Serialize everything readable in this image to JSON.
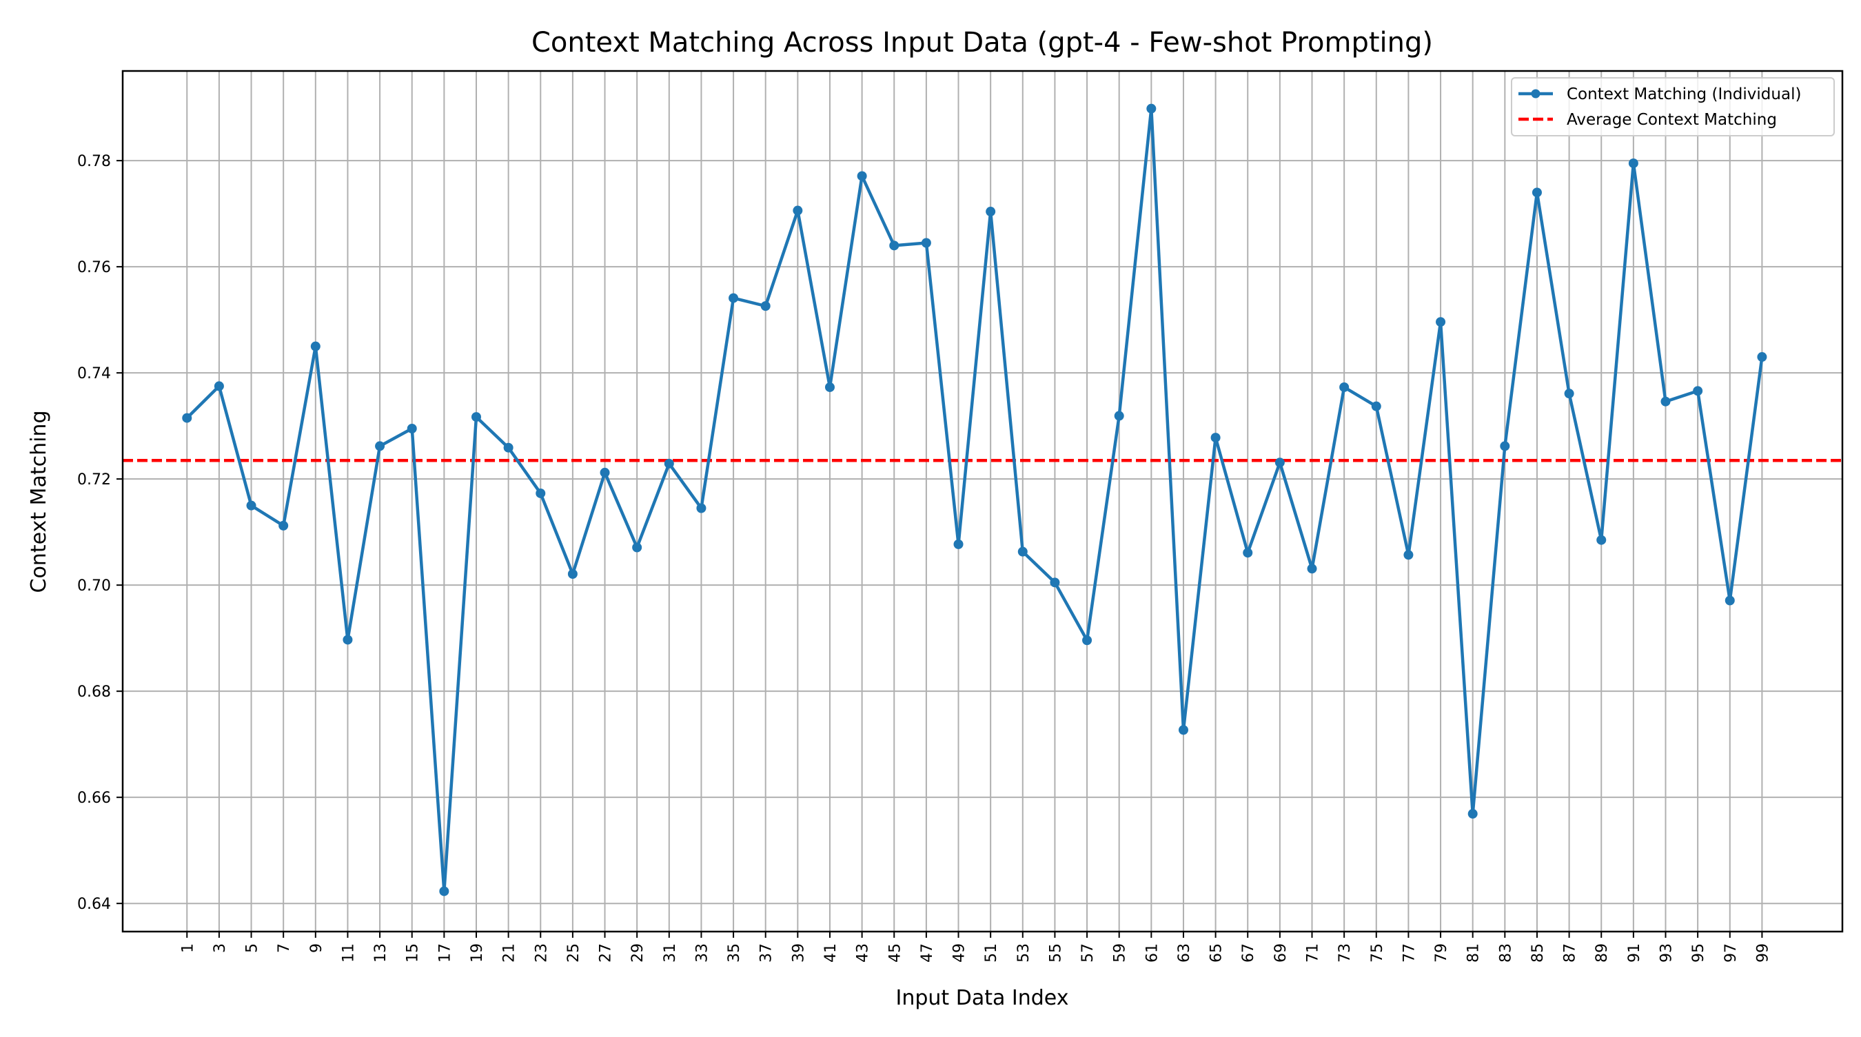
{
  "chart_data": {
    "type": "line",
    "title": "Context Matching Across Input Data (gpt-4 - Few-shot Prompting)",
    "xlabel": "Input Data Index",
    "ylabel": "Context Matching",
    "x_ticks": [
      "1",
      "3",
      "5",
      "7",
      "9",
      "11",
      "13",
      "15",
      "17",
      "19",
      "21",
      "23",
      "25",
      "27",
      "29",
      "31",
      "33",
      "35",
      "37",
      "39",
      "41",
      "43",
      "45",
      "47",
      "49",
      "51",
      "53",
      "55",
      "57",
      "59",
      "61",
      "63",
      "65",
      "67",
      "69",
      "71",
      "73",
      "75",
      "77",
      "79",
      "81",
      "83",
      "85",
      "87",
      "89",
      "91",
      "93",
      "95",
      "97",
      "99"
    ],
    "y_ticks": [
      "0.64",
      "0.66",
      "0.68",
      "0.70",
      "0.72",
      "0.74",
      "0.76",
      "0.78"
    ],
    "xlim": [
      -3,
      104
    ],
    "ylim": [
      0.6347,
      0.7969
    ],
    "grid": true,
    "legend_position": "top-right",
    "series": [
      {
        "name": "Context Matching (Individual)",
        "color": "#1f77b4",
        "style": "solid-with-markers",
        "x": [
          1,
          3,
          5,
          7,
          9,
          11,
          13,
          15,
          17,
          19,
          21,
          23,
          25,
          27,
          29,
          31,
          33,
          35,
          37,
          39,
          41,
          43,
          45,
          47,
          49,
          51,
          53,
          55,
          57,
          59,
          61,
          63,
          65,
          67,
          69,
          71,
          73,
          75,
          77,
          79,
          81,
          83,
          85,
          87,
          89,
          91,
          93,
          95,
          97,
          99
        ],
        "values": [
          0.7315,
          0.7375,
          0.715,
          0.7112,
          0.745,
          0.6897,
          0.7262,
          0.7295,
          0.6423,
          0.7317,
          0.7259,
          0.7173,
          0.7021,
          0.7212,
          0.7071,
          0.7229,
          0.7145,
          0.7541,
          0.7526,
          0.7706,
          0.7373,
          0.7771,
          0.764,
          0.7645,
          0.7077,
          0.7704,
          0.7063,
          0.7005,
          0.6896,
          0.7319,
          0.7898,
          0.6727,
          0.7278,
          0.7061,
          0.7231,
          0.7031,
          0.7373,
          0.7337,
          0.7057,
          0.7496,
          0.6569,
          0.7262,
          0.774,
          0.7361,
          0.7085,
          0.7795,
          0.7346,
          0.7366,
          0.6971,
          0.743
        ]
      },
      {
        "name": "Average Context Matching",
        "color": "#ff0000",
        "style": "dashed",
        "value": 0.7235
      }
    ]
  }
}
